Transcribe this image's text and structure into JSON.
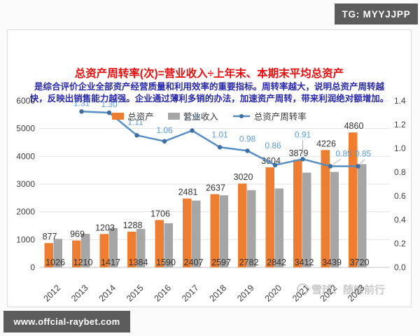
{
  "badges": {
    "tg": "TG: MYYJJPP",
    "url": "www.offcial-raybet.com"
  },
  "header": {
    "title": "总资产周转率(次)=营业收入÷上年末、本期末平均总资产",
    "subtitle_line1": "是综合评价企业全部资产经营质量和利用效率的重要指标。周转率越大，说明总资产周转越",
    "subtitle_line2": "快，反映出销售能力越强。企业通过薄利多销的办法，加速资产周转，带来利润绝对额增加。"
  },
  "watermark": {
    "text": "雪球：随峰前行"
  },
  "chart_data": {
    "type": "bar",
    "title": "总资产周转率(次)=营业收入÷上年末、本期末平均总资产",
    "categories": [
      "2012",
      "2013",
      "2014",
      "2015",
      "2016",
      "2017",
      "2018",
      "2019",
      "2020",
      "2021",
      "2022",
      "2023"
    ],
    "series": [
      {
        "name": "总资产",
        "type": "bar",
        "color": "#ED7D31",
        "values": [
          877,
          969,
          1203,
          1288,
          1706,
          2481,
          2637,
          3020,
          3604,
          3879,
          4226,
          4860
        ]
      },
      {
        "name": "营业收入",
        "type": "bar",
        "color": "#A6A6A6",
        "values": [
          1026,
          1210,
          1417,
          1384,
          1590,
          2407,
          2597,
          2782,
          2842,
          3412,
          3439,
          3720
        ]
      },
      {
        "name": "总资产周转率",
        "type": "line",
        "axis": "right",
        "color": "#5B9BD5",
        "values": [
          null,
          1.31,
          1.3,
          1.11,
          1.06,
          1.15,
          1.01,
          0.98,
          0.86,
          0.91,
          0.85,
          0.85
        ],
        "labels": [
          null,
          "1.31",
          "1.30",
          "1.11",
          "1.06",
          "1.15",
          "1.01",
          "0.98",
          "0.86",
          "0.91",
          "0.85",
          "0.85"
        ]
      }
    ],
    "left_axis": {
      "min": 0,
      "max": 6000,
      "step": 1000,
      "ticks": [
        "0",
        "1000",
        "2000",
        "3000",
        "4000",
        "5000",
        "6000"
      ]
    },
    "right_axis": {
      "min": 0,
      "max": 1.4,
      "step": 0.2,
      "ticks": [
        "0.0",
        "0.2",
        "0.4",
        "0.6",
        "0.8",
        "1.0",
        "1.2",
        "1.4"
      ]
    },
    "grid": true,
    "legend_position": "top"
  }
}
